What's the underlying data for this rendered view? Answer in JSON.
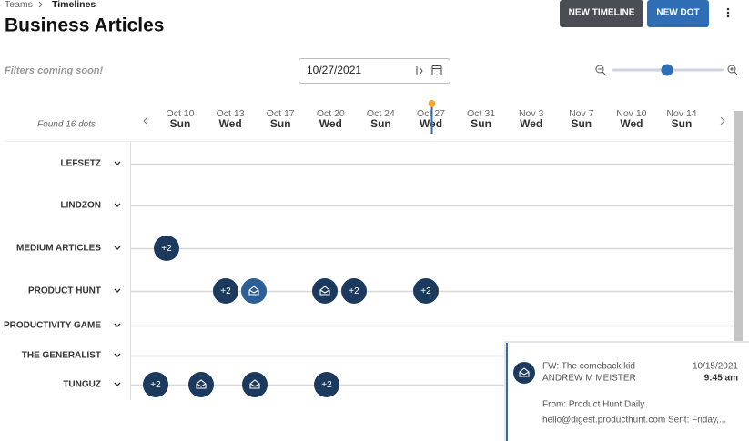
{
  "breadcrumb": {
    "parent": "Teams",
    "current": "Timelines"
  },
  "header": {
    "title": "Business Articles",
    "buttons": [
      "NEW TIMELINE",
      "NEW DOT"
    ]
  },
  "toolbar": {
    "filters": "Filters coming soon!",
    "date": "10/27/2021"
  },
  "timeline": {
    "found": "Found 16 dots",
    "columns": [
      {
        "date": "Oct 10",
        "day": "Sun"
      },
      {
        "date": "Oct 13",
        "day": "Wed"
      },
      {
        "date": "Oct 17",
        "day": "Sun"
      },
      {
        "date": "Oct 20",
        "day": "Wed"
      },
      {
        "date": "Oct 24",
        "day": "Sun"
      },
      {
        "date": "Oct 27",
        "day": "Wed"
      },
      {
        "date": "Oct 31",
        "day": "Sun"
      },
      {
        "date": "Nov 3",
        "day": "Wed"
      },
      {
        "date": "Nov 7",
        "day": "Sun"
      },
      {
        "date": "Nov 10",
        "day": "Wed"
      },
      {
        "date": "Nov 14",
        "day": "Sun"
      }
    ],
    "rows": [
      {
        "label": "LEFSETZ",
        "badges": []
      },
      {
        "label": "LINDZON",
        "badges": []
      },
      {
        "label": "MEDIUM ARTICLES",
        "badges": [
          "+2"
        ]
      },
      {
        "label": "PRODUCT HUNT",
        "badges": [
          "+2",
          "+2",
          "+2"
        ]
      },
      {
        "label": "PRODUCTIVITY GAME",
        "badges": []
      },
      {
        "label": "THE GENERALIST",
        "badges": []
      },
      {
        "label": "TUNGUZ",
        "badges": [
          "+2",
          "+2"
        ]
      }
    ]
  },
  "popup": {
    "subject": "FW: The comeback kid",
    "date": "10/15/2021",
    "sender": "ANDREW M MEISTER",
    "time": "9:45 am",
    "from": "From: Product Hunt Daily",
    "preview": "hello@digest.producthunt.com Sent: Friday,..."
  }
}
